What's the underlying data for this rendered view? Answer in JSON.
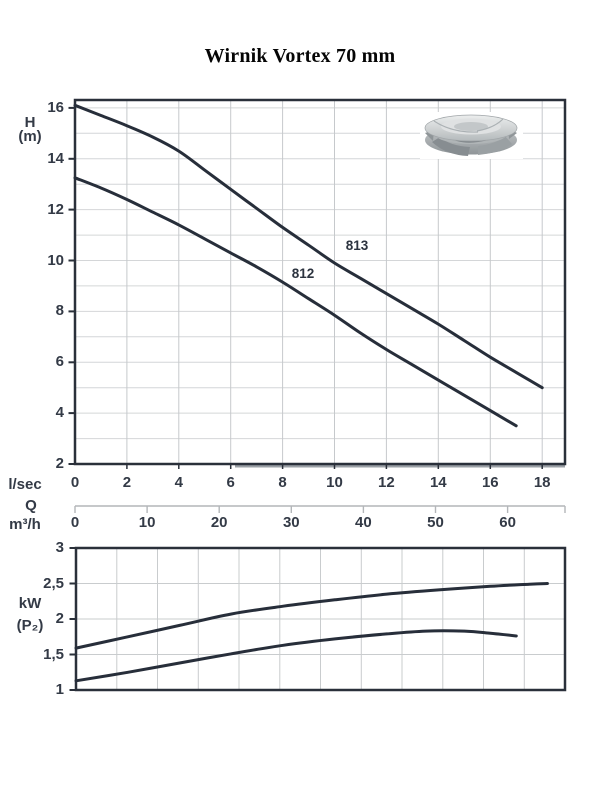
{
  "title": "Wirnik Vortex 70 mm",
  "colors": {
    "curve": "#272e3a",
    "frame": "#2a303a",
    "grid_v": "#c6c9cc",
    "grid_h": "#d4d6d8",
    "grid2": "#c9ccce",
    "secondary_axis": "#b3b6b9",
    "text": "#333a46",
    "title_text": "#050505"
  },
  "chart_data": [
    {
      "type": "line",
      "name": "head-curves",
      "ylabel": "H (m)",
      "ylabel_lines": [
        "H",
        "(m)"
      ],
      "xlabel_primary": "l/sec",
      "xlabel_secondary_prefix": "Q",
      "xlabel_secondary_unit": "m³/h",
      "xlim": [
        0,
        18.88
      ],
      "ylim": [
        2,
        16.31
      ],
      "grid": true,
      "x_ticks": [
        0,
        2,
        4,
        6,
        8,
        10,
        12,
        14,
        16,
        18
      ],
      "y_ticks": [
        2,
        4,
        6,
        8,
        10,
        12,
        14,
        16
      ],
      "x_gridlines": [
        2,
        4,
        6,
        8,
        10,
        12,
        14,
        16,
        18
      ],
      "y_gridlines": [
        3,
        4,
        5,
        6,
        7,
        8,
        9,
        10,
        11,
        12,
        13,
        14,
        15,
        16
      ],
      "secondary_axis": {
        "unit": "m³/h",
        "ticks": [
          0,
          10,
          20,
          30,
          40,
          50,
          60
        ],
        "lsec_per_unit": 0.27778
      },
      "series": [
        {
          "name": "812",
          "points": [
            [
              0,
              13.25
            ],
            [
              1,
              12.85
            ],
            [
              2,
              12.4
            ],
            [
              3,
              11.9
            ],
            [
              4,
              11.4
            ],
            [
              5,
              10.85
            ],
            [
              6,
              10.3
            ],
            [
              7,
              9.75
            ],
            [
              8,
              9.15
            ],
            [
              9,
              8.5
            ],
            [
              10,
              7.85
            ],
            [
              11,
              7.15
            ],
            [
              12,
              6.5
            ],
            [
              13,
              5.9
            ],
            [
              14,
              5.3
            ],
            [
              15,
              4.7
            ],
            [
              16,
              4.1
            ],
            [
              17,
              3.5
            ]
          ]
        },
        {
          "name": "813",
          "points": [
            [
              0,
              16.1
            ],
            [
              1,
              15.7
            ],
            [
              2,
              15.3
            ],
            [
              3,
              14.85
            ],
            [
              4,
              14.3
            ],
            [
              5,
              13.55
            ],
            [
              6,
              12.8
            ],
            [
              7,
              12.05
            ],
            [
              8,
              11.3
            ],
            [
              9,
              10.6
            ],
            [
              10,
              9.9
            ],
            [
              11,
              9.3
            ],
            [
              12,
              8.7
            ],
            [
              13,
              8.1
            ],
            [
              14,
              7.5
            ],
            [
              15,
              6.85
            ],
            [
              16,
              6.2
            ],
            [
              17,
              5.6
            ],
            [
              18,
              5.0
            ]
          ]
        }
      ]
    },
    {
      "type": "line",
      "name": "power-curves",
      "ylabel": "kW (P₂)",
      "ylabel_lines": [
        "kW",
        "(P₂)"
      ],
      "xlim": [
        0,
        18.88
      ],
      "ylim": [
        1,
        3
      ],
      "grid": true,
      "y_ticks": [
        3,
        2.5,
        2,
        1.5,
        1
      ],
      "y_tick_labels": [
        "3",
        "2,5",
        "2",
        "1,5",
        "1"
      ],
      "y_gridlines": [
        1.5,
        2,
        2.5
      ],
      "x_gridline_count": 11,
      "series": [
        {
          "name": "812",
          "points": [
            [
              0,
              1.13
            ],
            [
              2,
              1.25
            ],
            [
              4,
              1.38
            ],
            [
              6,
              1.51
            ],
            [
              8,
              1.63
            ],
            [
              10,
              1.72
            ],
            [
              12,
              1.79
            ],
            [
              13.5,
              1.83
            ],
            [
              15,
              1.83
            ],
            [
              16,
              1.8
            ],
            [
              17,
              1.76
            ]
          ]
        },
        {
          "name": "813",
          "points": [
            [
              0,
              1.59
            ],
            [
              2,
              1.75
            ],
            [
              4,
              1.91
            ],
            [
              6,
              2.07
            ],
            [
              8,
              2.18
            ],
            [
              10,
              2.27
            ],
            [
              12,
              2.35
            ],
            [
              14,
              2.41
            ],
            [
              16,
              2.46
            ],
            [
              17.5,
              2.49
            ],
            [
              18.2,
              2.5
            ]
          ]
        }
      ]
    }
  ]
}
